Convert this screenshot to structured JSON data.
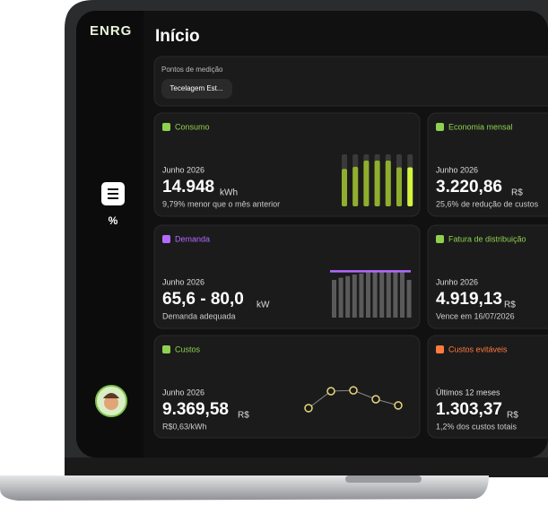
{
  "logo": "ENRG",
  "title": "Início",
  "sidebar": {
    "menu_label": "%"
  },
  "measurement": {
    "label": "Pontos de medição",
    "selected": "Tecelagem Est..."
  },
  "cards": [
    {
      "title": "Consumo",
      "period": "Junho 2026",
      "value": "14.948",
      "unit": "kWh",
      "note": "9,79% menor que o mês anterior",
      "chart": {
        "type": "bar",
        "values": [
          72,
          76,
          88,
          88,
          88,
          75,
          75
        ]
      }
    },
    {
      "title": "Economia mensal",
      "period": "Junho 2026",
      "value": "3.220,86",
      "unit": "R$",
      "note": "25,6% de redução de custos"
    },
    {
      "title": "Demanda",
      "period": "Junho 2026",
      "value": "65,6 - 80,0",
      "unit": "kW",
      "note": "Demanda adequada",
      "chart": {
        "type": "bar",
        "values": [
          70,
          74,
          77,
          80,
          82,
          84,
          86,
          86,
          86,
          86,
          84,
          70
        ],
        "limit": 86
      }
    },
    {
      "title": "Fatura de distribuição",
      "period": "Junho 2026",
      "value": "4.919,13",
      "unit": "R$",
      "note": "Vence em 16/07/2026"
    },
    {
      "title": "Custos",
      "period": "Junho 2026",
      "value": "9.369,58",
      "unit": "R$",
      "note": "R$0,63/kWh",
      "chart": {
        "type": "line",
        "values": [
          17,
          80,
          83,
          50,
          27
        ]
      }
    },
    {
      "title": "Custos evitáveis",
      "period": "Últimos 12 meses",
      "value": "1.303,37",
      "unit": "R$",
      "note": "1,2% dos custos totais"
    }
  ]
}
